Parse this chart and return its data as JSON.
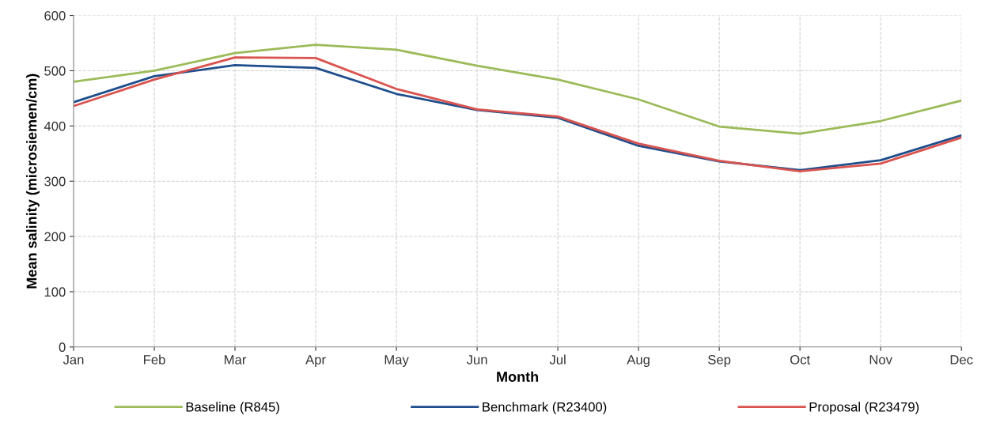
{
  "chart_data": {
    "type": "line",
    "xlabel": "Month",
    "ylabel": "Mean salinity (microsiemen/cm)",
    "categories": [
      "Jan",
      "Feb",
      "Mar",
      "Apr",
      "May",
      "Jun",
      "Jul",
      "Aug",
      "Sep",
      "Oct",
      "Nov",
      "Dec"
    ],
    "series": [
      {
        "name": "Baseline (R845)",
        "color": "#9bbb59",
        "values": [
          480,
          500,
          532,
          547,
          538,
          509,
          484,
          448,
          399,
          386,
          409,
          446
        ]
      },
      {
        "name": "Benchmark (R23400)",
        "color": "#1f4e8c",
        "values": [
          443,
          490,
          510,
          505,
          458,
          429,
          415,
          364,
          336,
          320,
          338,
          383
        ]
      },
      {
        "name": "Proposal (R23479)",
        "color": "#d9534f",
        "values": [
          436,
          484,
          524,
          523,
          467,
          430,
          417,
          368,
          337,
          318,
          332,
          379
        ]
      }
    ],
    "ylim": [
      0,
      600
    ],
    "yticks": [
      0,
      100,
      200,
      300,
      400,
      500,
      600
    ],
    "grid": true,
    "legend": "bottom",
    "marker": "none",
    "line_style": "solid"
  }
}
